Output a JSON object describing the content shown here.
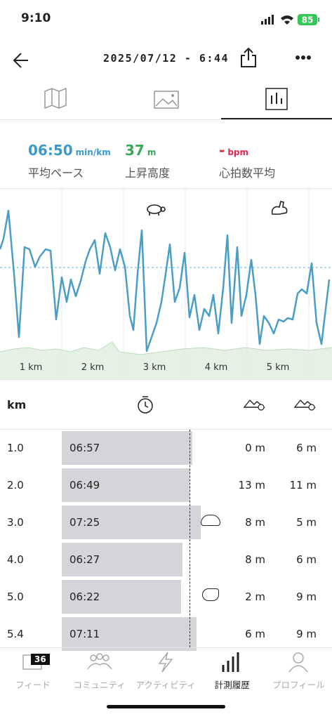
{
  "status": {
    "time": "9:10",
    "battery": "85"
  },
  "header": {
    "title": "2025/07/12 - 6:44"
  },
  "summary": [
    {
      "value": "06:50",
      "unit": "min/km",
      "label": "平均ペース"
    },
    {
      "value": "37",
      "unit": "m",
      "label": "上昇高度"
    },
    {
      "value": "-",
      "unit": "bpm",
      "label": "心拍数平均"
    }
  ],
  "chart": {
    "km_labels": [
      "1 km",
      "2 km",
      "3 km",
      "4 km",
      "5 km"
    ]
  },
  "table": {
    "header": "km",
    "rows": [
      [
        "1.0",
        "06:57",
        "0 m",
        "6 m"
      ],
      [
        "2.0",
        "06:49",
        "13 m",
        "11 m"
      ],
      [
        "3.0",
        "07:25",
        "8 m",
        "5 m"
      ],
      [
        "4.0",
        "06:27",
        "8 m",
        "6 m"
      ],
      [
        "5.0",
        "06:22",
        "2 m",
        "9 m"
      ],
      [
        "5.4",
        "07:11",
        "6 m",
        "9 m"
      ]
    ]
  },
  "tabbar": {
    "badge": "36",
    "labels": [
      "フィード",
      "コミュニティ",
      "アクティビティ",
      "計測履歴",
      "プロフィール"
    ]
  }
}
